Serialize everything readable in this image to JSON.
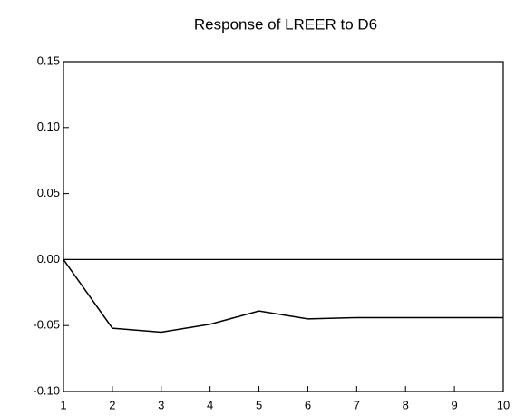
{
  "chart_data": {
    "type": "line",
    "title": "Response of LREER to D6",
    "x": [
      1,
      2,
      3,
      4,
      5,
      6,
      7,
      8,
      9,
      10
    ],
    "series": [
      {
        "name": "LREER",
        "color": "#000000",
        "values": [
          0.0,
          -0.052,
          -0.055,
          -0.049,
          -0.039,
          -0.045,
          -0.044,
          -0.044,
          -0.044,
          -0.044
        ]
      }
    ],
    "xlim": [
      1,
      10
    ],
    "xticks": [
      1,
      2,
      3,
      4,
      5,
      6,
      7,
      8,
      9,
      10
    ],
    "ylim": [
      -0.1,
      0.15
    ],
    "yticks": [
      {
        "value": -0.1,
        "label": "-0.10"
      },
      -0.05,
      {
        "value": 0,
        "label": "0.00"
      },
      0.05,
      {
        "value": 0.1,
        "label": "0.10"
      },
      0.15
    ],
    "zero_line": true
  }
}
